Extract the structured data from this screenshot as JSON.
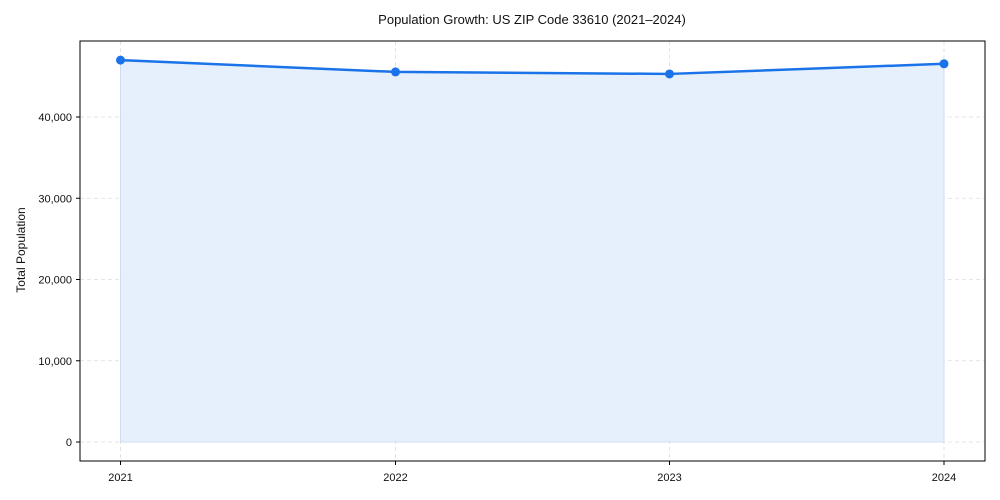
{
  "chart_data": {
    "type": "area",
    "title": "Population Growth: US ZIP Code 33610 (2021–2024)",
    "xlabel": "",
    "ylabel": "Total Population",
    "categories": [
      "2021",
      "2022",
      "2023",
      "2024"
    ],
    "series": [
      {
        "name": "Total Population",
        "values": [
          47000,
          45550,
          45300,
          46550
        ]
      }
    ],
    "ylim": [
      -2400,
      49200
    ],
    "yticks": [
      0,
      10000,
      20000,
      30000,
      40000
    ],
    "ytick_labels": [
      "0",
      "10,000",
      "20,000",
      "30,000",
      "40,000"
    ],
    "grid": true,
    "legend": null,
    "colors": {
      "line": "#1a73e8",
      "fill": "#e3eefd",
      "grid": "#dddddd"
    }
  }
}
